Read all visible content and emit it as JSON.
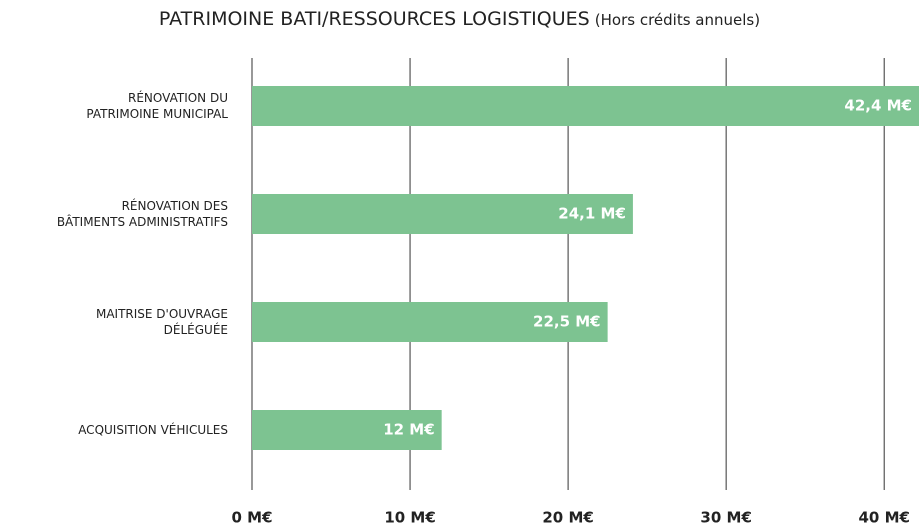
{
  "chart_data": {
    "type": "bar",
    "orientation": "horizontal",
    "title": "PATRIMOINE BATI/RESSOURCES LOGISTIQUES",
    "subtitle": "(Hors crédits annuels)",
    "categories": [
      "RÉNOVATION DU\nPATRIMOINE MUNICIPAL",
      "RÉNOVATION DES\nBÂTIMENTS ADMINISTRATIFS",
      "MAITRISE D'OUVRAGE\nDÉLÉGUÉE",
      "ACQUISITION VÉHICULES"
    ],
    "values": [
      42.4,
      24.1,
      22.5,
      12
    ],
    "value_labels": [
      "42,4 M€",
      "24,1 M€",
      "22,5 M€",
      "12 M€"
    ],
    "color": "#7dc391",
    "xlim": [
      0,
      42.2
    ],
    "xticks": [
      {
        "value": 0,
        "label": "0 M€"
      },
      {
        "value": 10,
        "label": "10 M€"
      },
      {
        "value": 20,
        "label": "20 M€"
      },
      {
        "value": 30,
        "label": "30 M€"
      },
      {
        "value": 40,
        "label": "40 M€"
      }
    ],
    "grid": true
  }
}
